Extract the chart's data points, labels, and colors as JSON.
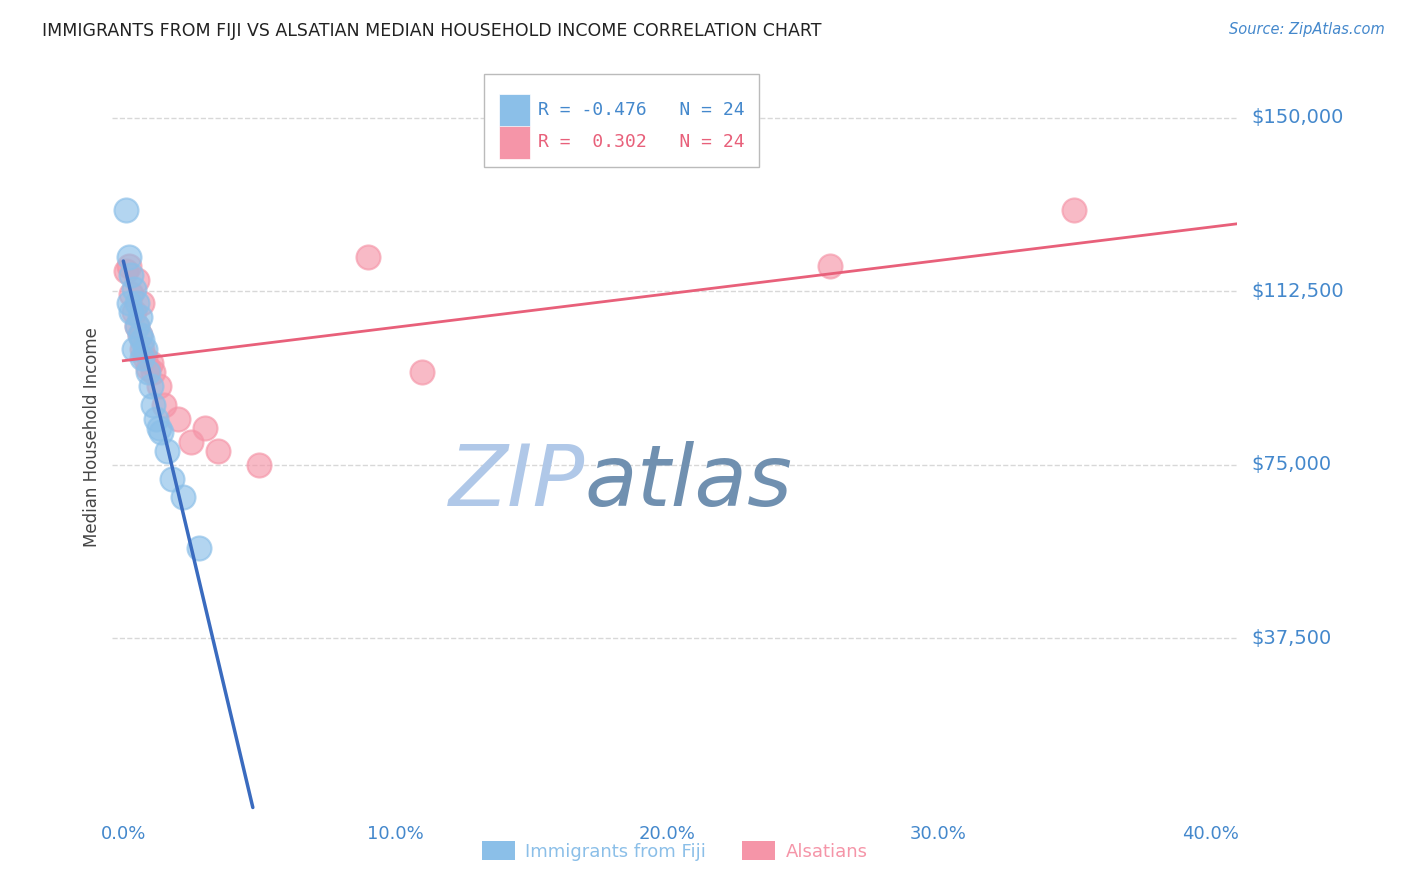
{
  "title": "IMMIGRANTS FROM FIJI VS ALSATIAN MEDIAN HOUSEHOLD INCOME CORRELATION CHART",
  "source_text": "Source: ZipAtlas.com",
  "ylabel": "Median Household Income",
  "xlabel_ticks": [
    "0.0%",
    "10.0%",
    "20.0%",
    "30.0%",
    "40.0%"
  ],
  "xlabel_values": [
    0.0,
    0.1,
    0.2,
    0.3,
    0.4
  ],
  "ytick_labels": [
    "$37,500",
    "$75,000",
    "$112,500",
    "$150,000"
  ],
  "ytick_values": [
    37500,
    75000,
    112500,
    150000
  ],
  "ylim": [
    0,
    162000
  ],
  "xlim": [
    -0.004,
    0.41
  ],
  "fiji_R": "-0.476",
  "fiji_N": "24",
  "alsatian_R": "0.302",
  "alsatian_N": "24",
  "fiji_color": "#8bbfe8",
  "alsatian_color": "#f595a8",
  "fiji_line_color": "#3a6bbf",
  "alsatian_line_color": "#e8607a",
  "fiji_scatter_x": [
    0.001,
    0.002,
    0.002,
    0.003,
    0.003,
    0.004,
    0.004,
    0.005,
    0.005,
    0.006,
    0.006,
    0.007,
    0.007,
    0.008,
    0.009,
    0.01,
    0.011,
    0.012,
    0.013,
    0.014,
    0.016,
    0.018,
    0.022,
    0.028
  ],
  "fiji_scatter_y": [
    130000,
    120000,
    110000,
    116000,
    108000,
    113000,
    100000,
    110000,
    105000,
    107000,
    103000,
    102000,
    98000,
    100000,
    95000,
    92000,
    88000,
    85000,
    83000,
    82000,
    78000,
    72000,
    68000,
    57000
  ],
  "alsatian_scatter_x": [
    0.001,
    0.002,
    0.003,
    0.004,
    0.005,
    0.005,
    0.006,
    0.007,
    0.007,
    0.008,
    0.009,
    0.01,
    0.011,
    0.013,
    0.015,
    0.02,
    0.025,
    0.03,
    0.035,
    0.05,
    0.09,
    0.11,
    0.26,
    0.35
  ],
  "alsatian_scatter_y": [
    117000,
    118000,
    112000,
    108000,
    115000,
    105000,
    103000,
    110000,
    100000,
    98000,
    96000,
    97000,
    95000,
    92000,
    88000,
    85000,
    80000,
    83000,
    78000,
    75000,
    120000,
    95000,
    118000,
    130000
  ],
  "background_color": "#ffffff",
  "grid_color": "#d8d8d8",
  "title_color": "#222222",
  "axis_label_color": "#444444",
  "tick_label_color": "#4488cc",
  "legend_label_color_fiji": "#4488cc",
  "legend_label_color_alsatian": "#e8607a",
  "watermark_zip_color": "#b0c8e8",
  "watermark_atlas_color": "#7090b0",
  "watermark_text": "ZIPatlas"
}
